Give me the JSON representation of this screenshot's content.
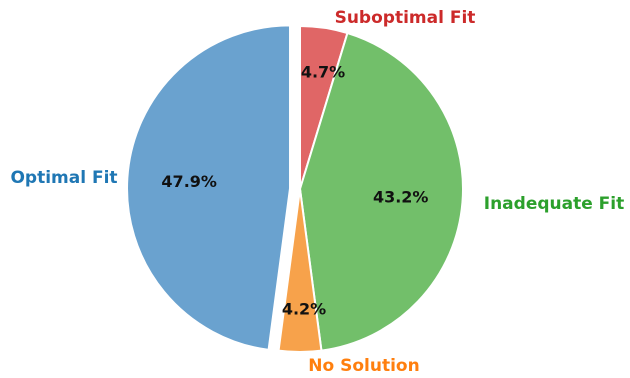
{
  "chart_data": {
    "type": "pie",
    "title": "",
    "start_angle_deg": 90,
    "direction": "clockwise",
    "slices": [
      {
        "label": "Suboptimal Fit",
        "value": 4.7,
        "pct_label": "4.7%",
        "color": "#e06666",
        "label_color": "#cc2a2a",
        "explode": 0
      },
      {
        "label": "Inadequate Fit",
        "value": 43.2,
        "pct_label": "43.2%",
        "color": "#72bf6a",
        "label_color": "#2ca02c",
        "explode": 0
      },
      {
        "label": "No Solution",
        "value": 4.2,
        "pct_label": "4.2%",
        "color": "#f7a24b",
        "label_color": "#ff7f0e",
        "explode": 0
      },
      {
        "label": "Optimal Fit",
        "value": 47.9,
        "pct_label": "47.9%",
        "color": "#6aa2cf",
        "label_color": "#1f77b4",
        "explode": 1
      }
    ]
  }
}
